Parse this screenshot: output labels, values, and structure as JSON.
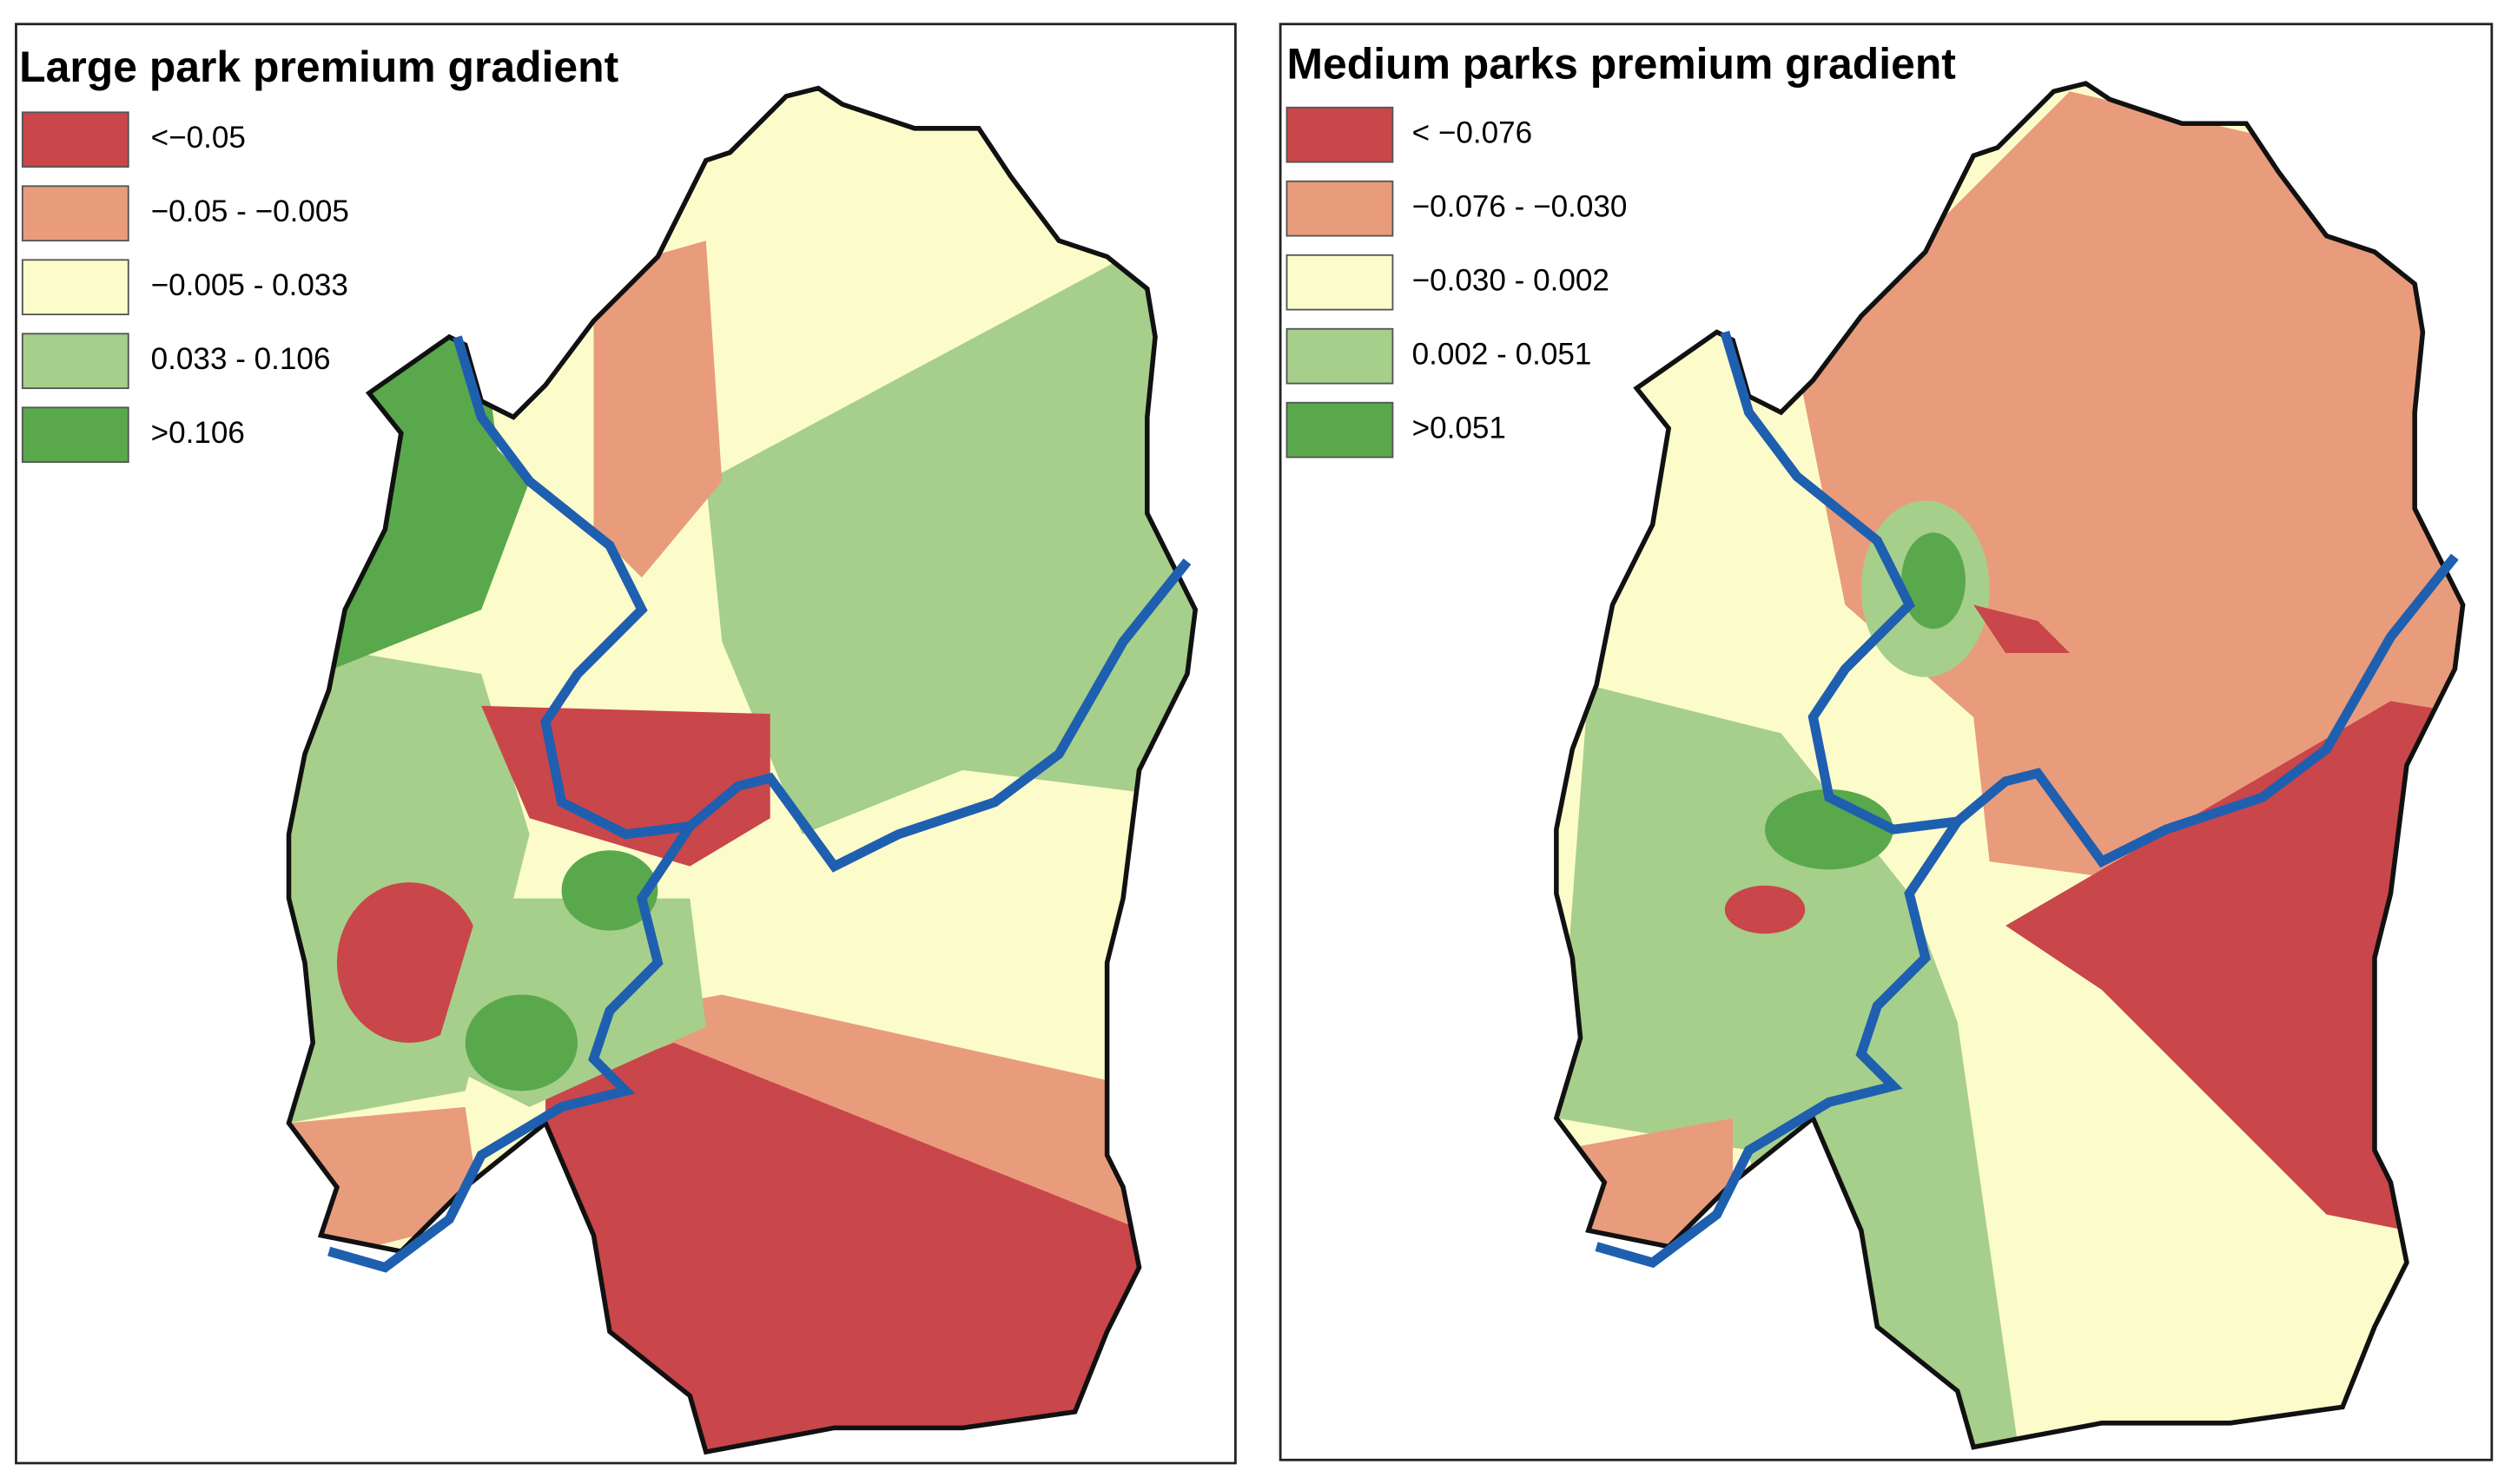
{
  "panels": [
    {
      "title": "Large park premium gradient",
      "legend": [
        {
          "label": "<−0.05",
          "color": "#c9464a"
        },
        {
          "label": "−0.05 - −0.005",
          "color": "#e89c7c"
        },
        {
          "label": "−0.005 - 0.033",
          "color": "#fcfccb"
        },
        {
          "label": "0.033 - 0.106",
          "color": "#a6cf8b"
        },
        {
          "label": ">0.106",
          "color": "#5aa84c"
        }
      ]
    },
    {
      "title": "Medium parks premium gradient",
      "legend": [
        {
          "label": "< −0.076",
          "color": "#c9464a"
        },
        {
          "label": "−0.076 - −0.030",
          "color": "#e89c7c"
        },
        {
          "label": "−0.030 - 0.002",
          "color": "#fcfccb"
        },
        {
          "label": "0.002 - 0.051",
          "color": "#a6cf8b"
        },
        {
          "label": ">0.051",
          "color": "#5aa84c"
        }
      ]
    }
  ]
}
